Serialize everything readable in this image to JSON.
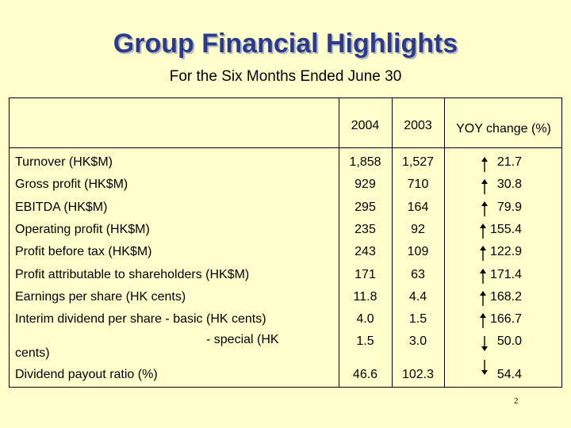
{
  "slide": {
    "title": "Group Financial Highlights",
    "subtitle": "For the Six Months Ended June 30",
    "page_number": "2"
  },
  "table": {
    "headers": {
      "y2004": "2004",
      "y2003": "2003",
      "yoy": "YOY change (%)"
    },
    "rows": [
      {
        "label": "Turnover (HK$M)",
        "v2004": "1,858",
        "v2003": "1,527",
        "yoy": "21.7",
        "direction": "up"
      },
      {
        "label": "Gross profit (HK$M)",
        "v2004": "929",
        "v2003": "710",
        "yoy": "30.8",
        "direction": "up"
      },
      {
        "label": "EBITDA (HK$M)",
        "v2004": "295",
        "v2003": "164",
        "yoy": "79.9",
        "direction": "up"
      },
      {
        "label": "Operating profit (HK$M)",
        "v2004": "235",
        "v2003": "92",
        "yoy": "155.4",
        "direction": "up"
      },
      {
        "label": "Profit before tax (HK$M)",
        "v2004": "243",
        "v2003": "109",
        "yoy": "122.9",
        "direction": "up"
      },
      {
        "label": "Profit attributable to shareholders (HK$M)",
        "v2004": "171",
        "v2003": "63",
        "yoy": "171.4",
        "direction": "up"
      },
      {
        "label": "Earnings per share (HK cents)",
        "v2004": "11.8",
        "v2003": "4.4",
        "yoy": "168.2",
        "direction": "up"
      },
      {
        "label": "Interim dividend per share -  basic (HK cents)",
        "v2004": "4.0",
        "v2003": "1.5",
        "yoy": "166.7",
        "direction": "up"
      },
      {
        "label": "- special (HK",
        "label_cont": "cents)",
        "v2004": "1.5",
        "v2003": "3.0",
        "yoy": "50.0",
        "direction": "down"
      },
      {
        "label": "Dividend payout ratio (%)",
        "v2004": "46.6",
        "v2003": "102.3",
        "yoy": "54.4",
        "direction": "down"
      }
    ]
  },
  "colors": {
    "background": "#FFFFCC",
    "title": "#2a3a8c",
    "border": "#000000"
  }
}
